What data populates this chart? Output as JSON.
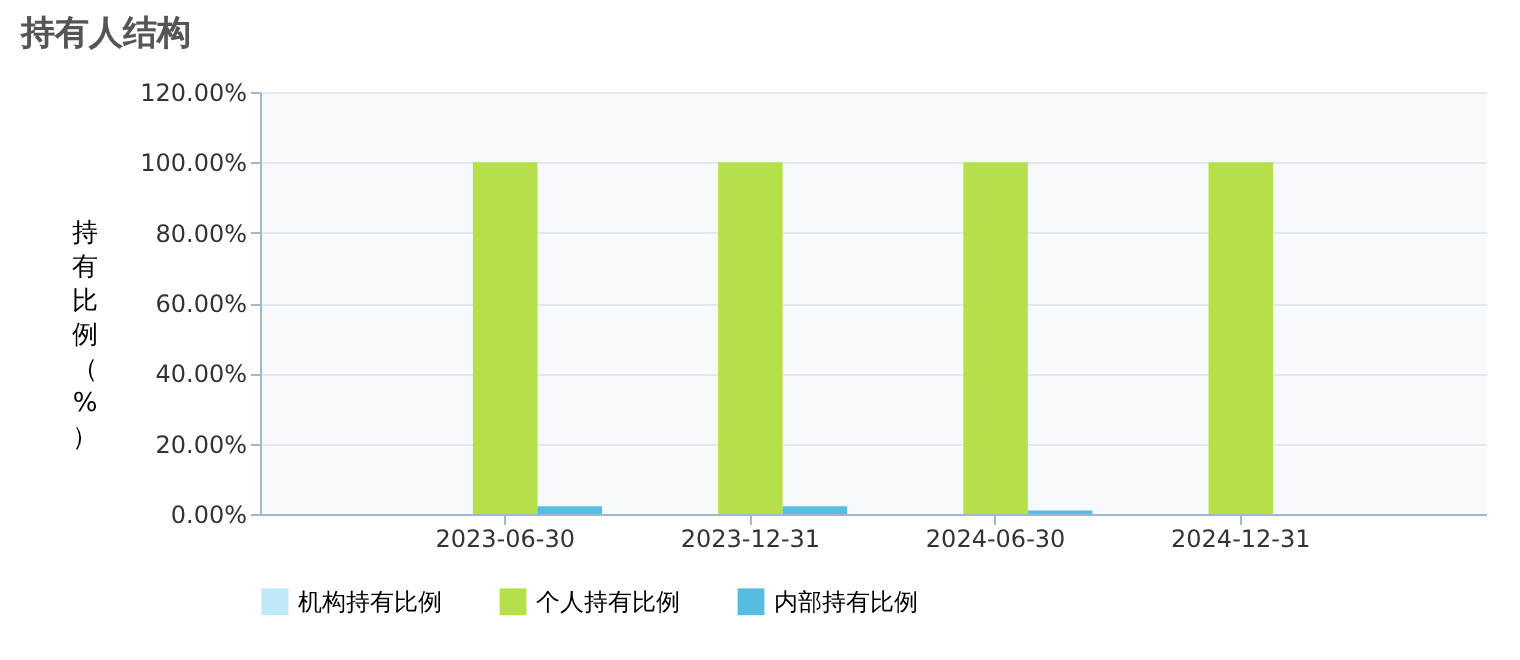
{
  "chart_data": {
    "type": "bar",
    "title": "持有人结构",
    "ylabel": "持有比例（%）",
    "categories": [
      "2023-06-30",
      "2023-12-31",
      "2024-06-30",
      "2024-12-31"
    ],
    "series": [
      {
        "name": "机构持有比例",
        "color": "#bfe9f7",
        "values": [
          0,
          0,
          0,
          0
        ]
      },
      {
        "name": "个人持有比例",
        "color": "#b5e04a",
        "values": [
          100,
          100,
          100,
          100
        ]
      },
      {
        "name": "内部持有比例",
        "color": "#56bde0",
        "values": [
          2.2,
          2.2,
          1.0,
          0
        ]
      }
    ],
    "ylim": [
      0,
      120
    ],
    "yticks": [
      {
        "value": 0,
        "label": "0.00%"
      },
      {
        "value": 20,
        "label": "20.00%"
      },
      {
        "value": 40,
        "label": "40.00%"
      },
      {
        "value": 60,
        "label": "60.00%"
      },
      {
        "value": 80,
        "label": "80.00%"
      },
      {
        "value": 100,
        "label": "100.00%"
      },
      {
        "value": 120,
        "label": "120.00%"
      }
    ],
    "grid": "y",
    "legend": "bottom"
  }
}
